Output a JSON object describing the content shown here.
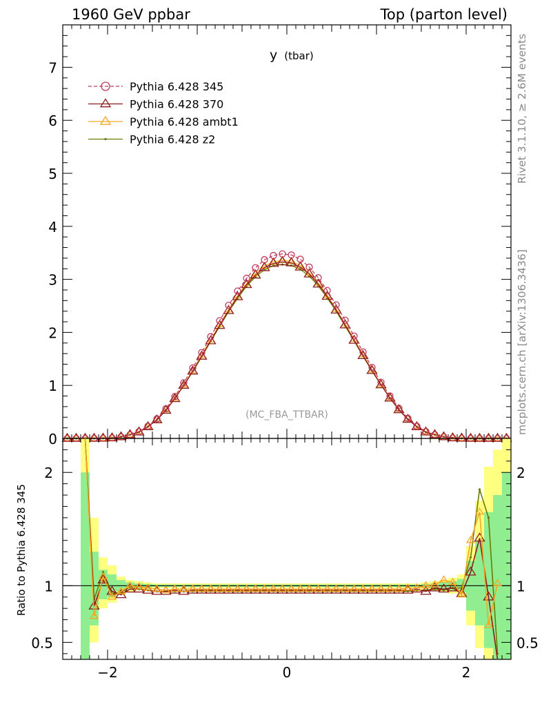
{
  "header": {
    "left": "1960 GeV ppbar",
    "right": "Top (parton level)"
  },
  "side_labels": {
    "rivet": "Rivet 3.1.10, ≥ 2.6M events",
    "mcplots": "mcplots.cern.ch [arXiv:1306.3436]"
  },
  "chart_data": [
    {
      "type": "line",
      "title": "y",
      "title_sub": "(tbar)",
      "annotation": "(MC_FBA_TTBAR)",
      "xlim": [
        -2.5,
        2.5
      ],
      "ylim": [
        0,
        7.8
      ],
      "y_ticks": [
        0,
        1,
        2,
        3,
        4,
        5,
        6,
        7
      ],
      "y_tick_labels": [
        "0",
        "1",
        "2",
        "3",
        "4",
        "5",
        "6",
        "7"
      ],
      "legend_position": "top-left",
      "x": [
        -2.45,
        -2.35,
        -2.25,
        -2.15,
        -2.05,
        -1.95,
        -1.85,
        -1.75,
        -1.65,
        -1.55,
        -1.45,
        -1.35,
        -1.25,
        -1.15,
        -1.05,
        -0.95,
        -0.85,
        -0.75,
        -0.65,
        -0.55,
        -0.45,
        -0.35,
        -0.25,
        -0.15,
        -0.05,
        0.05,
        0.15,
        0.25,
        0.35,
        0.45,
        0.55,
        0.65,
        0.75,
        0.85,
        0.95,
        1.05,
        1.15,
        1.25,
        1.35,
        1.45,
        1.55,
        1.65,
        1.75,
        1.85,
        1.95,
        2.05,
        2.15,
        2.25,
        2.35,
        2.45
      ],
      "series": [
        {
          "name": "Pythia 6.428 345",
          "color": "#c0395d",
          "marker": "circle",
          "dashed": true,
          "values": [
            0.0,
            0.0,
            0.0,
            0.001,
            0.003,
            0.01,
            0.03,
            0.07,
            0.13,
            0.23,
            0.37,
            0.56,
            0.79,
            1.05,
            1.33,
            1.62,
            1.92,
            2.22,
            2.51,
            2.78,
            3.02,
            3.22,
            3.37,
            3.45,
            3.48,
            3.46,
            3.38,
            3.23,
            3.03,
            2.79,
            2.52,
            2.23,
            1.93,
            1.63,
            1.34,
            1.06,
            0.8,
            0.57,
            0.38,
            0.23,
            0.13,
            0.07,
            0.03,
            0.01,
            0.003,
            0.001,
            0.0,
            0.0,
            0.0,
            0.0
          ]
        },
        {
          "name": "Pythia 6.428 370",
          "color": "#8b1a1a",
          "marker": "triangle",
          "dashed": false,
          "values": [
            0.0,
            0.0,
            0.0,
            0.001,
            0.003,
            0.01,
            0.03,
            0.07,
            0.12,
            0.22,
            0.35,
            0.53,
            0.75,
            1.0,
            1.27,
            1.55,
            1.84,
            2.13,
            2.41,
            2.67,
            2.9,
            3.08,
            3.22,
            3.3,
            3.33,
            3.31,
            3.23,
            3.1,
            2.91,
            2.68,
            2.42,
            2.14,
            1.85,
            1.56,
            1.28,
            1.01,
            0.76,
            0.54,
            0.36,
            0.22,
            0.12,
            0.07,
            0.03,
            0.01,
            0.003,
            0.001,
            0.0,
            0.0,
            0.0,
            0.0
          ]
        },
        {
          "name": "Pythia 6.428 ambt1",
          "color": "#f5a623",
          "marker": "triangle",
          "dashed": false,
          "values": [
            0.0,
            0.0,
            0.0,
            0.001,
            0.003,
            0.01,
            0.03,
            0.07,
            0.13,
            0.22,
            0.36,
            0.54,
            0.76,
            1.01,
            1.28,
            1.57,
            1.86,
            2.15,
            2.43,
            2.69,
            2.92,
            3.11,
            3.25,
            3.33,
            3.36,
            3.34,
            3.26,
            3.12,
            2.93,
            2.7,
            2.44,
            2.16,
            1.87,
            1.58,
            1.29,
            1.02,
            0.77,
            0.55,
            0.37,
            0.23,
            0.13,
            0.07,
            0.03,
            0.01,
            0.003,
            0.001,
            0.0,
            0.0,
            0.0,
            0.0
          ]
        },
        {
          "name": "Pythia 6.428 z2",
          "color": "#6b7a00",
          "marker": "dot",
          "dashed": false,
          "values": [
            0.0,
            0.0,
            0.0,
            0.001,
            0.003,
            0.01,
            0.03,
            0.07,
            0.12,
            0.22,
            0.35,
            0.53,
            0.75,
            1.0,
            1.26,
            1.54,
            1.83,
            2.11,
            2.39,
            2.64,
            2.87,
            3.05,
            3.18,
            3.26,
            3.28,
            3.26,
            3.19,
            3.06,
            2.88,
            2.65,
            2.4,
            2.12,
            1.84,
            1.55,
            1.27,
            1.01,
            0.76,
            0.54,
            0.36,
            0.22,
            0.12,
            0.07,
            0.03,
            0.01,
            0.003,
            0.001,
            0.0,
            0.0,
            0.0,
            0.0
          ]
        }
      ]
    },
    {
      "type": "line",
      "ylabel": "Ratio to Pythia 6.428 345",
      "xlim": [
        -2.5,
        2.5
      ],
      "ylim": [
        0.35,
        2.3
      ],
      "x_ticks": [
        -2,
        0,
        2
      ],
      "x_tick_labels": [
        "−2",
        "0",
        "2"
      ],
      "y_ticks": [
        0.5,
        1,
        2
      ],
      "y_tick_labels": [
        "0.5",
        "1",
        "2"
      ],
      "reference_line": 1,
      "band_colors": {
        "outer": "#ffff80",
        "inner": "#90ee90"
      },
      "band_x_edges": [
        -2.3,
        -2.2,
        -2.1,
        -2.0,
        -1.9,
        -1.8,
        -1.7,
        -1.6,
        -1.5,
        1.5,
        1.6,
        1.7,
        1.8,
        1.9,
        2.0,
        2.1,
        2.2,
        2.3,
        2.4,
        2.5
      ],
      "band_outer": [
        [
          0.35,
          2.3
        ],
        [
          0.5,
          1.6
        ],
        [
          0.8,
          1.25
        ],
        [
          0.85,
          1.18
        ],
        [
          0.92,
          1.08
        ],
        [
          0.95,
          1.05
        ],
        [
          0.96,
          1.04
        ],
        [
          0.97,
          1.03
        ],
        [
          0.98,
          1.02
        ],
        [
          0.97,
          1.03
        ],
        [
          0.96,
          1.04
        ],
        [
          0.95,
          1.05
        ],
        [
          0.93,
          1.07
        ],
        [
          0.9,
          1.1
        ],
        [
          0.65,
          1.35
        ],
        [
          0.45,
          1.75
        ],
        [
          0.35,
          2.05
        ],
        [
          0.35,
          2.2
        ],
        [
          0.35,
          2.3
        ]
      ],
      "band_inner": [
        [
          0.35,
          2.0
        ],
        [
          0.65,
          1.3
        ],
        [
          0.88,
          1.14
        ],
        [
          0.9,
          1.1
        ],
        [
          0.95,
          1.05
        ],
        [
          0.97,
          1.03
        ],
        [
          0.98,
          1.02
        ],
        [
          0.985,
          1.015
        ],
        [
          0.99,
          1.01
        ],
        [
          0.985,
          1.015
        ],
        [
          0.98,
          1.02
        ],
        [
          0.97,
          1.03
        ],
        [
          0.96,
          1.04
        ],
        [
          0.94,
          1.06
        ],
        [
          0.78,
          1.22
        ],
        [
          0.65,
          1.4
        ],
        [
          0.45,
          1.65
        ],
        [
          0.35,
          1.8
        ],
        [
          0.35,
          2.0
        ]
      ],
      "ratio_x": [
        -2.25,
        -2.15,
        -2.05,
        -1.95,
        -1.85,
        -1.75,
        -1.65,
        -1.55,
        -1.45,
        -1.35,
        -1.25,
        -1.15,
        -1.05,
        -0.95,
        -0.85,
        -0.75,
        -0.65,
        -0.55,
        -0.45,
        -0.35,
        -0.25,
        -0.15,
        -0.05,
        0.05,
        0.15,
        0.25,
        0.35,
        0.45,
        0.55,
        0.65,
        0.75,
        0.85,
        0.95,
        1.05,
        1.15,
        1.25,
        1.35,
        1.45,
        1.55,
        1.65,
        1.75,
        1.85,
        1.95,
        2.05,
        2.15,
        2.25,
        2.35
      ],
      "series": [
        {
          "name": "Pythia 6.428 370",
          "color": "#8b1a1a",
          "marker": "triangle",
          "values": [
            2.3,
            0.82,
            1.05,
            0.95,
            0.92,
            0.97,
            0.97,
            0.96,
            0.95,
            0.95,
            0.96,
            0.95,
            0.96,
            0.96,
            0.96,
            0.96,
            0.96,
            0.96,
            0.96,
            0.96,
            0.96,
            0.96,
            0.96,
            0.96,
            0.96,
            0.96,
            0.96,
            0.96,
            0.96,
            0.96,
            0.96,
            0.96,
            0.96,
            0.96,
            0.96,
            0.96,
            0.96,
            0.97,
            0.95,
            0.98,
            0.97,
            0.98,
            0.93,
            1.12,
            1.42,
            0.9,
            0.35
          ]
        },
        {
          "name": "Pythia 6.428 ambt1",
          "color": "#f5a623",
          "marker": "triangle",
          "values": [
            2.3,
            0.73,
            1.08,
            0.9,
            0.95,
            1.0,
            0.99,
            0.98,
            0.97,
            0.96,
            0.97,
            0.97,
            0.97,
            0.97,
            0.97,
            0.97,
            0.97,
            0.97,
            0.97,
            0.97,
            0.97,
            0.97,
            0.97,
            0.97,
            0.97,
            0.97,
            0.97,
            0.97,
            0.97,
            0.97,
            0.97,
            0.97,
            0.97,
            0.97,
            0.97,
            0.97,
            0.98,
            0.98,
            1.0,
            1.01,
            1.05,
            1.03,
            0.92,
            1.4,
            1.65,
            0.65,
            1.02
          ]
        },
        {
          "name": "Pythia 6.428 z2",
          "color": "#6b7a00",
          "marker": "dot",
          "values": [
            2.3,
            0.88,
            1.12,
            0.93,
            0.94,
            0.99,
            0.97,
            0.96,
            0.95,
            0.95,
            0.95,
            0.95,
            0.95,
            0.95,
            0.95,
            0.95,
            0.95,
            0.95,
            0.95,
            0.95,
            0.95,
            0.95,
            0.95,
            0.95,
            0.95,
            0.95,
            0.95,
            0.95,
            0.95,
            0.95,
            0.95,
            0.95,
            0.95,
            0.95,
            0.95,
            0.95,
            0.95,
            0.96,
            0.96,
            0.97,
            0.96,
            0.98,
            0.98,
            1.25,
            1.85,
            1.6,
            0.4
          ]
        }
      ]
    }
  ]
}
